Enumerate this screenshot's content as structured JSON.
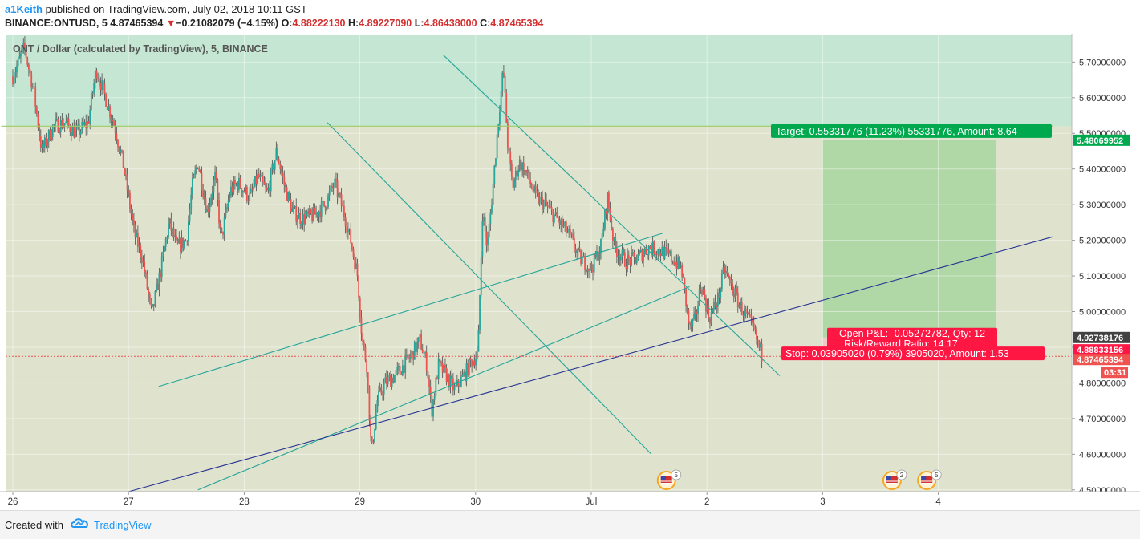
{
  "header": {
    "author": "a1Keith",
    "published_text": "published on TradingView.com, July 02, 2018 10:11 GST",
    "symbol": "BINANCE:ONTUSD, 5",
    "last": "4.87465394",
    "change_arrow": "▼",
    "change": "−0.21082079 (−4.15%)",
    "open_label": "O:",
    "open": "4.88222130",
    "high_label": "H:",
    "high": "4.89227090",
    "low_label": "L:",
    "low": "4.86438000",
    "close_label": "C:",
    "close": "4.87465394"
  },
  "footer": {
    "created_with": "Created with",
    "brand": "TradingView"
  },
  "chart_data": {
    "type": "candlestick",
    "title": "ONT / Dollar (calculated by TradingView), 5, BINANCE",
    "ylim": [
      4.495,
      5.775
    ],
    "xlim": [
      0,
      9.2
    ],
    "y_ticks": [
      "5.70000000",
      "5.60000000",
      "5.50000000",
      "5.40000000",
      "5.30000000",
      "5.20000000",
      "5.10000000",
      "5.00000000",
      "4.90000000",
      "4.80000000",
      "4.70000000",
      "4.60000000",
      "4.50000000"
    ],
    "y_tick_values": [
      5.7,
      5.6,
      5.5,
      5.4,
      5.3,
      5.2,
      5.1,
      5.0,
      4.9,
      4.8,
      4.7,
      4.6,
      4.5
    ],
    "x_ticks": [
      {
        "label": "26",
        "x": 0
      },
      {
        "label": "27",
        "x": 1
      },
      {
        "label": "28",
        "x": 2
      },
      {
        "label": "29",
        "x": 3
      },
      {
        "label": "30",
        "x": 4
      },
      {
        "label": "Jul",
        "x": 5
      },
      {
        "label": "2",
        "x": 6
      },
      {
        "label": "3",
        "x": 7
      },
      {
        "label": "4",
        "x": 8
      }
    ],
    "price_path": [
      [
        0.0,
        5.66
      ],
      [
        0.1,
        5.74
      ],
      [
        0.18,
        5.62
      ],
      [
        0.25,
        5.45
      ],
      [
        0.35,
        5.52
      ],
      [
        0.45,
        5.53
      ],
      [
        0.55,
        5.5
      ],
      [
        0.65,
        5.53
      ],
      [
        0.72,
        5.68
      ],
      [
        0.8,
        5.6
      ],
      [
        0.88,
        5.52
      ],
      [
        0.95,
        5.42
      ],
      [
        1.05,
        5.22
      ],
      [
        1.12,
        5.15
      ],
      [
        1.2,
        4.99
      ],
      [
        1.28,
        5.12
      ],
      [
        1.35,
        5.25
      ],
      [
        1.42,
        5.18
      ],
      [
        1.5,
        5.2
      ],
      [
        1.55,
        5.35
      ],
      [
        1.6,
        5.42
      ],
      [
        1.68,
        5.28
      ],
      [
        1.75,
        5.38
      ],
      [
        1.8,
        5.2
      ],
      [
        1.88,
        5.34
      ],
      [
        1.95,
        5.36
      ],
      [
        2.05,
        5.32
      ],
      [
        2.12,
        5.38
      ],
      [
        2.2,
        5.33
      ],
      [
        2.28,
        5.45
      ],
      [
        2.35,
        5.35
      ],
      [
        2.42,
        5.28
      ],
      [
        2.5,
        5.26
      ],
      [
        2.6,
        5.27
      ],
      [
        2.7,
        5.3
      ],
      [
        2.78,
        5.36
      ],
      [
        2.86,
        5.28
      ],
      [
        2.92,
        5.2
      ],
      [
        2.98,
        5.1
      ],
      [
        3.02,
        4.92
      ],
      [
        3.06,
        4.85
      ],
      [
        3.1,
        4.6
      ],
      [
        3.15,
        4.75
      ],
      [
        3.22,
        4.8
      ],
      [
        3.3,
        4.82
      ],
      [
        3.38,
        4.85
      ],
      [
        3.45,
        4.88
      ],
      [
        3.52,
        4.92
      ],
      [
        3.58,
        4.85
      ],
      [
        3.62,
        4.72
      ],
      [
        3.68,
        4.85
      ],
      [
        3.75,
        4.82
      ],
      [
        3.82,
        4.78
      ],
      [
        3.9,
        4.82
      ],
      [
        3.96,
        4.86
      ],
      [
        4.02,
        4.88
      ],
      [
        4.06,
        5.28
      ],
      [
        4.1,
        5.18
      ],
      [
        4.15,
        5.35
      ],
      [
        4.2,
        5.55
      ],
      [
        4.24,
        5.68
      ],
      [
        4.28,
        5.46
      ],
      [
        4.32,
        5.35
      ],
      [
        4.38,
        5.42
      ],
      [
        4.45,
        5.38
      ],
      [
        4.52,
        5.32
      ],
      [
        4.6,
        5.3
      ],
      [
        4.7,
        5.26
      ],
      [
        4.8,
        5.22
      ],
      [
        4.9,
        5.15
      ],
      [
        5.0,
        5.12
      ],
      [
        5.08,
        5.18
      ],
      [
        5.14,
        5.32
      ],
      [
        5.2,
        5.18
      ],
      [
        5.3,
        5.14
      ],
      [
        5.4,
        5.15
      ],
      [
        5.5,
        5.18
      ],
      [
        5.6,
        5.17
      ],
      [
        5.7,
        5.15
      ],
      [
        5.78,
        5.12
      ],
      [
        5.85,
        4.95
      ],
      [
        5.9,
        4.98
      ],
      [
        5.95,
        5.08
      ],
      [
        6.02,
        4.98
      ],
      [
        6.1,
        5.04
      ],
      [
        6.15,
        5.12
      ],
      [
        6.2,
        5.08
      ],
      [
        6.28,
        5.02
      ],
      [
        6.35,
        4.98
      ],
      [
        6.4,
        4.95
      ],
      [
        6.45,
        4.9
      ],
      [
        6.48,
        4.875
      ]
    ],
    "lines": [
      {
        "name": "",
        "color": "#26a69a",
        "points": [
          [
            3.72,
            5.72
          ],
          [
            6.63,
            4.82
          ]
        ]
      },
      {
        "name": "",
        "color": "#26a69a",
        "points": [
          [
            2.72,
            5.53
          ],
          [
            5.52,
            4.6
          ]
        ]
      },
      {
        "name": "",
        "color": "#26a69a",
        "points": [
          [
            1.26,
            4.79
          ],
          [
            5.62,
            5.22
          ]
        ]
      },
      {
        "name": "",
        "color": "#26a69a",
        "points": [
          [
            1.6,
            4.5
          ],
          [
            5.85,
            5.07
          ]
        ]
      },
      {
        "name": "",
        "color": "#283593",
        "points": [
          [
            1.0,
            4.495
          ],
          [
            8.99,
            5.21
          ]
        ]
      },
      {
        "name": "",
        "color": "#9ccc65",
        "points": [
          [
            -0.1,
            5.52
          ],
          [
            8.99,
            5.52
          ]
        ]
      }
    ],
    "target_price": 5.48069952,
    "entry_price": 4.92738176,
    "stop_price": 4.88833156,
    "last_price": 4.87465394,
    "position_x_range": [
      7.0,
      8.5
    ],
    "target_label": "Target: 0.55331776 (11.23%) 55331776, Amount: 8.64",
    "stop_label": "Stop: 0.03905020 (0.79%) 3905020, Amount: 1.53",
    "pnl_label": "Open P&L: -0.05272782, Qty: 12",
    "rr_label": "Risk/Reward Ratio: 14.17",
    "price_tags": {
      "target": "5.48069952",
      "entry": "4.92738176",
      "stop": "4.88833156",
      "last": "4.87465394",
      "countdown": "03:31"
    },
    "events": [
      {
        "x": 5.65,
        "badge": "5"
      },
      {
        "x": 7.6,
        "badge": "2"
      },
      {
        "x": 7.9,
        "badge": "5"
      }
    ],
    "colors": {
      "up": "#26a69a",
      "down": "#ef5350",
      "upper_zone": "#c4e6d2",
      "lower_zone": "#dfe2cd",
      "target_zone": "#a7d69f",
      "stop_zone": "#f5c7c4",
      "stop_badge": "#ff1744",
      "target_badge": "#00a94e",
      "entry_tag": "#424242"
    }
  }
}
